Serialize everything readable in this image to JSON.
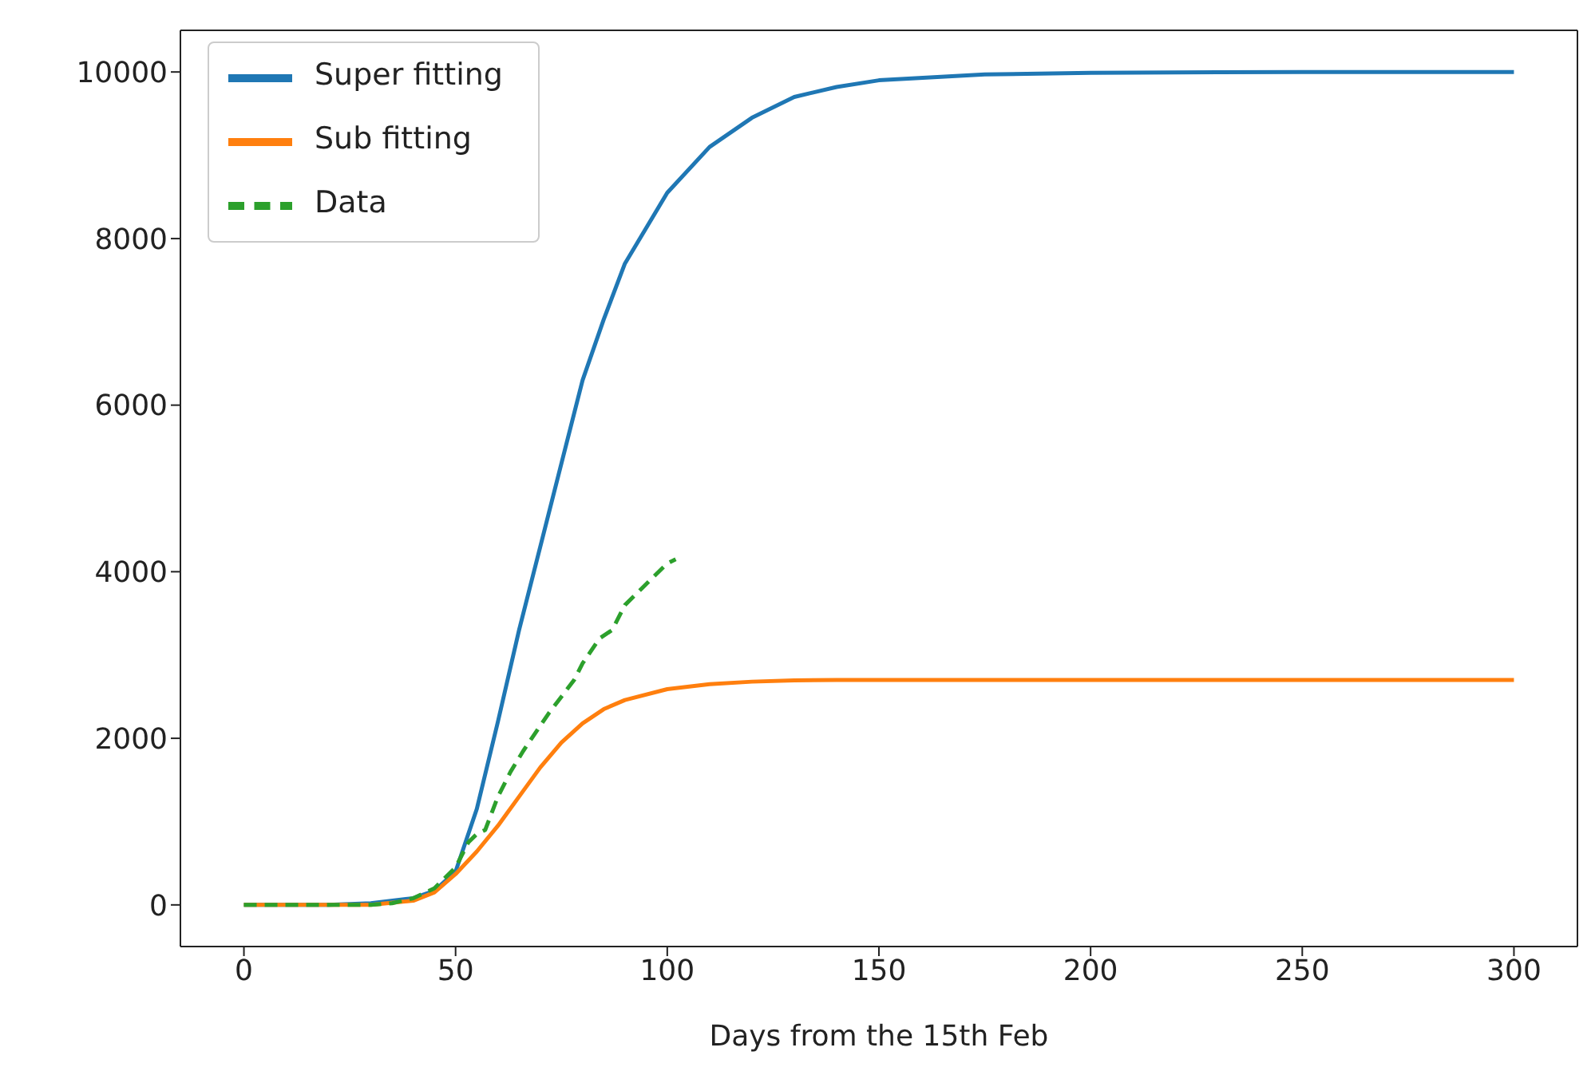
{
  "chart_data": {
    "type": "line",
    "xlabel": "Days from the 15th Feb",
    "xlim": [
      -15,
      315
    ],
    "xticks": [
      0,
      50,
      100,
      150,
      200,
      250,
      300
    ],
    "ylim": [
      -500,
      10500
    ],
    "yticks": [
      0,
      2000,
      4000,
      6000,
      8000,
      10000
    ],
    "legend": "top left",
    "marker": "none",
    "series": [
      {
        "name": "Super fitting",
        "color": "#1f77b4",
        "line_style": "solid",
        "x": [
          0,
          20,
          30,
          40,
          45,
          50,
          55,
          60,
          65,
          70,
          75,
          80,
          85,
          90,
          100,
          110,
          120,
          130,
          140,
          150,
          175,
          200,
          250,
          300
        ],
        "values": [
          0,
          0,
          20,
          80,
          170,
          400,
          1150,
          2200,
          3300,
          4300,
          5300,
          6300,
          7030,
          7700,
          8550,
          9100,
          9450,
          9700,
          9820,
          9900,
          9970,
          9990,
          10000,
          10000
        ]
      },
      {
        "name": "Sub fitting",
        "color": "#ff7f0e",
        "line_style": "solid",
        "x": [
          0,
          20,
          30,
          40,
          45,
          50,
          55,
          60,
          65,
          70,
          75,
          80,
          85,
          90,
          100,
          110,
          120,
          130,
          140,
          150,
          175,
          200,
          250,
          300
        ],
        "values": [
          0,
          0,
          0,
          50,
          150,
          370,
          640,
          950,
          1300,
          1650,
          1950,
          2180,
          2350,
          2460,
          2590,
          2650,
          2680,
          2695,
          2700,
          2700,
          2700,
          2700,
          2700,
          2700
        ]
      },
      {
        "name": "Data",
        "color": "#2ca02c",
        "line_style": "dashed",
        "x": [
          0,
          10,
          20,
          30,
          35,
          40,
          45,
          50,
          53,
          55,
          57,
          60,
          63,
          66,
          70,
          72,
          75,
          78,
          80,
          84,
          87,
          90,
          94,
          97,
          100,
          102
        ],
        "values": [
          0,
          0,
          0,
          0,
          20,
          80,
          200,
          450,
          750,
          850,
          900,
          1300,
          1600,
          1850,
          2150,
          2300,
          2500,
          2700,
          2900,
          3200,
          3300,
          3600,
          3800,
          3950,
          4100,
          4150
        ]
      }
    ]
  }
}
